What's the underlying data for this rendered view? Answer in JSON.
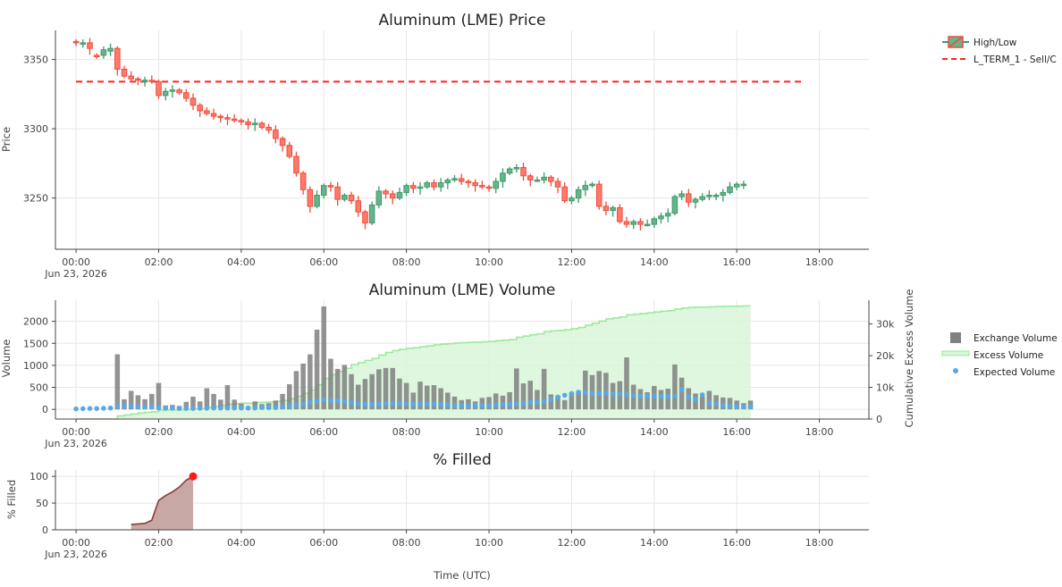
{
  "chart_data": [
    {
      "type": "candlestick",
      "title": "Aluminum (LME) Price",
      "ylabel": "Price",
      "ylim": [
        3213,
        3371
      ],
      "yticks": [
        "3250",
        "3300",
        "3350"
      ],
      "xlim_hours": [
        -0.5,
        19.2
      ],
      "xticks": [
        "00:00",
        "02:00",
        "04:00",
        "06:00",
        "08:00",
        "10:00",
        "12:00",
        "14:00",
        "16:00",
        "18:00"
      ],
      "x_date_label": "Jun 23, 2026",
      "legend": [
        "High/Low",
        "L_TERM_1 - Sell/C"
      ],
      "reference_line": {
        "name": "L_TERM_1 - Sell/C",
        "value": 3334,
        "x_start": "00:00",
        "x_end": "17:40",
        "color": "#ff2020"
      },
      "candle_interval_minutes": 10,
      "series_start": "00:00",
      "closes": [
        3362,
        3362,
        3358,
        3352,
        3357,
        3358,
        3343,
        3338,
        3336,
        3335,
        3335,
        3334,
        3324,
        3327,
        3328,
        3326,
        3322,
        3317,
        3313,
        3311,
        3309,
        3308,
        3307,
        3306,
        3305,
        3303,
        3304,
        3301,
        3299,
        3293,
        3288,
        3280,
        3268,
        3256,
        3244,
        3252,
        3259,
        3258,
        3249,
        3252,
        3248,
        3240,
        3232,
        3245,
        3255,
        3253,
        3250,
        3254,
        3259,
        3257,
        3258,
        3261,
        3258,
        3261,
        3263,
        3264,
        3262,
        3261,
        3259,
        3258,
        3257,
        3262,
        3268,
        3271,
        3272,
        3266,
        3263,
        3263,
        3265,
        3262,
        3258,
        3248,
        3250,
        3256,
        3259,
        3260,
        3244,
        3241,
        3243,
        3233,
        3231,
        3233,
        3231,
        3231,
        3235,
        3237,
        3239,
        3251,
        3253,
        3247,
        3249,
        3251,
        3252,
        3252,
        3254,
        3258,
        3260,
        3260
      ],
      "opens": [
        3363,
        3362,
        3362,
        3353,
        3353,
        3356,
        3358,
        3343,
        3338,
        3336,
        3335,
        3335,
        3334,
        3324,
        3327,
        3328,
        3326,
        3322,
        3317,
        3313,
        3311,
        3309,
        3308,
        3307,
        3306,
        3305,
        3303,
        3304,
        3301,
        3299,
        3293,
        3288,
        3280,
        3268,
        3256,
        3244,
        3252,
        3259,
        3258,
        3249,
        3252,
        3248,
        3240,
        3232,
        3245,
        3255,
        3253,
        3250,
        3254,
        3259,
        3257,
        3258,
        3261,
        3258,
        3261,
        3263,
        3264,
        3262,
        3261,
        3259,
        3258,
        3257,
        3262,
        3268,
        3271,
        3272,
        3266,
        3263,
        3263,
        3265,
        3262,
        3258,
        3248,
        3250,
        3256,
        3259,
        3260,
        3244,
        3241,
        3243,
        3233,
        3231,
        3233,
        3231,
        3231,
        3235,
        3237,
        3239,
        3251,
        3253,
        3247,
        3249,
        3251,
        3252,
        3252,
        3254,
        3258,
        3260
      ]
    },
    {
      "type": "bar+area+scatter",
      "title": "Aluminum (LME) Volume",
      "ylabel": "Volume",
      "y2label": "Cumulative Excess Volume",
      "ylim": [
        -220,
        2480
      ],
      "y2lim": [
        0,
        37500
      ],
      "yticks": [
        "0",
        "500",
        "1000",
        "1500",
        "2000"
      ],
      "y2ticks": [
        "0",
        "10k",
        "20k",
        "30k"
      ],
      "xticks": [
        "00:00",
        "02:00",
        "04:00",
        "06:00",
        "08:00",
        "10:00",
        "12:00",
        "14:00",
        "16:00",
        "18:00"
      ],
      "x_date_label": "Jun 23, 2026",
      "legend": [
        "Exchange Volume",
        "Excess Volume",
        "Expected Volume"
      ],
      "colors": {
        "exchange": "#808080",
        "excess_line": "#9be89b",
        "excess_fill": "#d8f6d8",
        "expected": "#5aa9e6"
      },
      "bar_interval_minutes": 10,
      "series_start": "00:00",
      "exchange_volume": [
        5,
        10,
        20,
        30,
        25,
        40,
        1250,
        230,
        420,
        320,
        230,
        350,
        600,
        90,
        100,
        80,
        170,
        290,
        180,
        480,
        350,
        220,
        550,
        220,
        130,
        40,
        180,
        120,
        140,
        200,
        350,
        570,
        870,
        1040,
        1250,
        1810,
        2340,
        1150,
        920,
        1010,
        800,
        560,
        690,
        800,
        910,
        940,
        940,
        700,
        600,
        380,
        630,
        540,
        550,
        480,
        380,
        290,
        210,
        230,
        180,
        260,
        280,
        360,
        310,
        390,
        930,
        590,
        650,
        440,
        920,
        340,
        310,
        210,
        380,
        410,
        880,
        780,
        870,
        830,
        600,
        640,
        1180,
        560,
        460,
        390,
        530,
        440,
        470,
        1020,
        720,
        480,
        360,
        290,
        420,
        320,
        270,
        260,
        200,
        140,
        200
      ],
      "expected_volume": [
        10,
        15,
        20,
        20,
        25,
        30,
        100,
        80,
        70,
        60,
        55,
        60,
        30,
        25,
        25,
        20,
        20,
        20,
        25,
        25,
        30,
        30,
        30,
        30,
        30,
        30,
        30,
        40,
        40,
        40,
        60,
        80,
        100,
        120,
        160,
        180,
        220,
        200,
        190,
        180,
        150,
        130,
        110,
        110,
        120,
        130,
        140,
        140,
        130,
        120,
        130,
        120,
        120,
        110,
        100,
        90,
        90,
        80,
        80,
        90,
        90,
        100,
        110,
        110,
        130,
        140,
        160,
        160,
        180,
        230,
        280,
        320,
        360,
        390,
        380,
        360,
        360,
        370,
        350,
        350,
        340,
        320,
        300,
        300,
        300,
        290,
        290,
        300,
        450,
        280,
        230,
        330,
        140,
        130,
        90,
        80,
        70,
        60,
        60
      ],
      "cumulative_excess": [
        0,
        0,
        0,
        0,
        0,
        0,
        1000,
        1300,
        1600,
        1900,
        2100,
        2300,
        2800,
        2850,
        2900,
        2950,
        3000,
        3200,
        3300,
        3700,
        4000,
        4200,
        4700,
        4900,
        5000,
        5000,
        5200,
        5300,
        5400,
        5600,
        5900,
        6400,
        7200,
        8100,
        9200,
        10800,
        12800,
        14000,
        15000,
        16000,
        17200,
        17800,
        18500,
        19100,
        20200,
        21000,
        21600,
        22000,
        22300,
        22500,
        22800,
        23100,
        23400,
        23600,
        23800,
        24000,
        24100,
        24200,
        24300,
        24400,
        24500,
        24700,
        24900,
        25100,
        25800,
        26200,
        26600,
        26900,
        27600,
        27800,
        28000,
        28200,
        28500,
        28900,
        29600,
        30200,
        30900,
        31600,
        31900,
        32200,
        32900,
        33100,
        33300,
        33500,
        33800,
        34000,
        34200,
        34700,
        35000,
        35200,
        35300,
        35300,
        35400,
        35500,
        35600,
        35600,
        35600,
        35700
      ]
    },
    {
      "type": "area",
      "title": "% Filled",
      "ylabel": "% Filled",
      "xlabel": "Time (UTC)",
      "ylim": [
        0,
        112
      ],
      "yticks": [
        "0",
        "50",
        "100"
      ],
      "xticks": [
        "00:00",
        "02:00",
        "04:00",
        "06:00",
        "08:00",
        "10:00",
        "12:00",
        "14:00",
        "16:00",
        "18:00"
      ],
      "x_date_label": "Jun 23, 2026",
      "colors": {
        "fill": "#c8a8a4",
        "line": "#8b3a3a",
        "marker": "#ff1a1a"
      },
      "x": [
        "01:20",
        "01:40",
        "01:50",
        "02:00",
        "02:10",
        "02:20",
        "02:30",
        "02:40",
        "02:50"
      ],
      "values": [
        10,
        12,
        18,
        55,
        64,
        71,
        80,
        93,
        100
      ]
    }
  ]
}
